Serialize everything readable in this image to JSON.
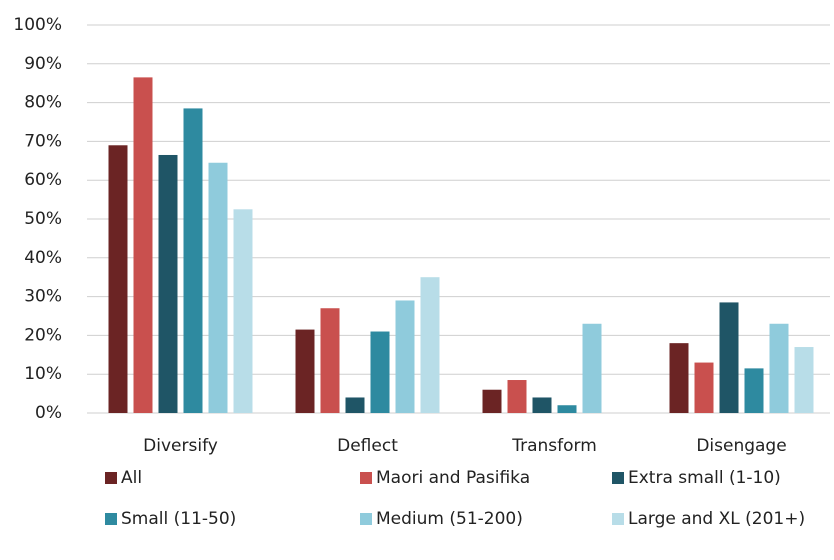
{
  "chart_data": {
    "type": "bar",
    "categories": [
      "Diversify",
      "Deflect",
      "Transform",
      "Disengage"
    ],
    "series": [
      {
        "name": "All",
        "color": "#6b2424",
        "values": [
          69,
          21.5,
          6,
          18
        ]
      },
      {
        "name": "Maori and Pasifika",
        "color": "#c9504e",
        "values": [
          86.5,
          27,
          8.5,
          13
        ]
      },
      {
        "name": "Extra small  (1-10)",
        "color": "#1f5566",
        "values": [
          66.5,
          4,
          4,
          28.5
        ]
      },
      {
        "name": "Small (11-50)",
        "color": "#2e8aa0",
        "values": [
          78.5,
          21,
          2,
          11.5
        ]
      },
      {
        "name": "Medium (51-200)",
        "color": "#8fcbdc",
        "values": [
          64.5,
          29,
          23,
          23
        ]
      },
      {
        "name": "Large and XL (201+)",
        "color": "#b8dde8",
        "values": [
          52.5,
          35,
          0,
          17
        ]
      }
    ],
    "ylim": [
      0,
      100
    ],
    "yticks": [
      {
        "value": 0,
        "label": "0%"
      },
      {
        "value": 10,
        "label": "10%"
      },
      {
        "value": 20,
        "label": "20%"
      },
      {
        "value": 30,
        "label": "30%"
      },
      {
        "value": 40,
        "label": "40%"
      },
      {
        "value": 50,
        "label": "50%"
      },
      {
        "value": 60,
        "label": "60%"
      },
      {
        "value": 70,
        "label": "70%"
      },
      {
        "value": 80,
        "label": "80%"
      },
      {
        "value": 90,
        "label": "90%"
      },
      {
        "value": 100,
        "label": "100%"
      }
    ],
    "grid": true
  }
}
